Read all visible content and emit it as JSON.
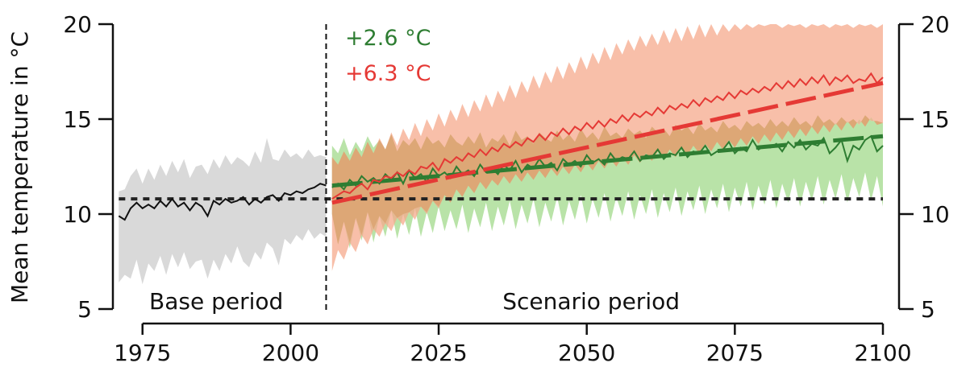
{
  "chart_data": {
    "type": "line",
    "title": "",
    "ylabel": "Mean temperature in °C",
    "xlabel": "",
    "xlim": [
      1970,
      2100
    ],
    "ylim": [
      5,
      20
    ],
    "x_ticks": [
      1975,
      2000,
      2025,
      2050,
      2075,
      2100
    ],
    "y_ticks": [
      5,
      10,
      15,
      20
    ],
    "x_tick_labels": [
      "1975",
      "2000",
      "2025",
      "2050",
      "2075",
      "2100"
    ],
    "y_tick_labels": [
      "5",
      "10",
      "15",
      "20"
    ],
    "period_divider_year": 2006,
    "period_labels": {
      "base": "Base period",
      "scenario": "Scenario period"
    },
    "baseline_mean": 10.8,
    "annotations": [
      {
        "text": "+2.6 °C",
        "color": "#2e7d32"
      },
      {
        "text": "+6.3 °C",
        "color": "#e53935"
      }
    ],
    "colors": {
      "base_band": "#d9d9d9",
      "green": "#2e7d32",
      "green_band": "#b9e3a8",
      "red": "#e53935",
      "red_band": "#f6a98c",
      "baseline": "#222222"
    },
    "base": {
      "x_start": 1971,
      "x_end": 2006,
      "mean": [
        9.9,
        9.7,
        10.3,
        10.6,
        10.3,
        10.5,
        10.3,
        10.7,
        10.4,
        10.8,
        10.4,
        10.6,
        10.2,
        10.6,
        10.4,
        9.9,
        10.7,
        10.5,
        10.8,
        10.6,
        10.7,
        10.9,
        10.5,
        10.8,
        10.6,
        10.9,
        11.0,
        10.7,
        11.1,
        11.0,
        11.2,
        11.1,
        11.3,
        11.4,
        11.6,
        11.5
      ],
      "upper": [
        11.2,
        11.3,
        12.0,
        12.4,
        11.6,
        12.4,
        11.8,
        12.6,
        12.0,
        12.8,
        12.2,
        12.9,
        11.9,
        12.5,
        12.6,
        12.1,
        12.9,
        12.4,
        13.1,
        12.6,
        13.0,
        12.8,
        12.5,
        13.3,
        12.7,
        14.0,
        12.9,
        12.8,
        13.4,
        13.0,
        13.2,
        12.9,
        13.4,
        13.0,
        13.1,
        13.0
      ],
      "lower": [
        6.4,
        6.8,
        6.6,
        7.6,
        6.3,
        7.4,
        7.0,
        7.8,
        6.8,
        7.9,
        7.2,
        8.0,
        7.1,
        7.5,
        7.6,
        6.6,
        7.6,
        7.0,
        7.9,
        7.4,
        8.3,
        7.5,
        7.2,
        8.0,
        7.6,
        8.5,
        8.2,
        7.3,
        8.7,
        8.4,
        8.9,
        8.6,
        9.2,
        8.7,
        9.0,
        8.8
      ]
    },
    "series": [
      {
        "name": "",
        "color": "#2e7d32",
        "x_start": 2007,
        "x_end": 2100,
        "trend": [
          11.5,
          14.1
        ],
        "mean": [
          11.4,
          11.6,
          11.3,
          11.8,
          11.5,
          12.0,
          11.7,
          11.9,
          11.6,
          12.1,
          11.8,
          12.2,
          11.6,
          12.3,
          11.9,
          12.1,
          11.7,
          12.4,
          12.0,
          12.2,
          11.9,
          12.5,
          12.1,
          12.3,
          12.0,
          12.6,
          12.2,
          12.4,
          12.1,
          12.6,
          12.3,
          12.8,
          12.2,
          12.6,
          12.4,
          12.9,
          12.5,
          12.7,
          12.3,
          12.9,
          12.6,
          12.8,
          12.5,
          13.1,
          12.7,
          12.9,
          12.6,
          13.2,
          12.8,
          13.0,
          12.9,
          13.3,
          12.8,
          13.1,
          13.0,
          13.4,
          12.9,
          13.2,
          13.1,
          13.5,
          13.0,
          13.3,
          13.2,
          13.6,
          13.1,
          13.3,
          13.4,
          13.8,
          13.2,
          13.5,
          13.3,
          13.9,
          13.4,
          13.6,
          13.5,
          13.7,
          13.3,
          13.8,
          13.5,
          13.9,
          13.4,
          13.7,
          13.6,
          14.0,
          13.2,
          13.5,
          13.9,
          12.8,
          13.6,
          13.4,
          13.9,
          14.1,
          13.3,
          13.6
        ],
        "upper": [
          13.6,
          13.2,
          14.0,
          13.1,
          13.8,
          13.3,
          14.1,
          13.5,
          13.9,
          13.4,
          14.2,
          13.3,
          13.9,
          13.6,
          14.0,
          13.4,
          14.1,
          13.7,
          13.9,
          13.5,
          14.2,
          13.8,
          13.6,
          14.1,
          13.7,
          14.3,
          13.5,
          14.0,
          13.8,
          14.2,
          13.6,
          14.4,
          13.9,
          14.1,
          13.7,
          14.3,
          14.0,
          13.8,
          14.4,
          13.9,
          14.2,
          13.8,
          14.5,
          14.0,
          14.3,
          13.9,
          14.6,
          14.1,
          14.3,
          14.0,
          14.5,
          14.2,
          14.4,
          14.0,
          14.6,
          14.3,
          14.5,
          14.1,
          14.7,
          14.4,
          14.6,
          14.2,
          14.8,
          14.4,
          14.6,
          14.3,
          14.9,
          14.5,
          14.7,
          14.4,
          14.9,
          14.6,
          14.8,
          14.5,
          15.0,
          14.6,
          14.9,
          14.6,
          15.1,
          14.7,
          14.9,
          14.6,
          15.2,
          14.8,
          15.0,
          14.7,
          15.1,
          14.8,
          15.0,
          14.7,
          15.2,
          14.9,
          14.9,
          14.8
        ],
        "lower": [
          10.0,
          8.4,
          9.6,
          8.2,
          9.8,
          8.6,
          10.1,
          8.5,
          9.9,
          8.8,
          10.2,
          8.7,
          10.0,
          8.9,
          10.3,
          8.8,
          10.1,
          9.0,
          10.4,
          9.1,
          10.2,
          9.2,
          10.5,
          9.0,
          10.3,
          9.3,
          10.6,
          9.1,
          10.4,
          9.4,
          10.7,
          9.2,
          10.5,
          9.5,
          10.8,
          9.3,
          10.6,
          9.6,
          10.9,
          9.4,
          10.7,
          9.7,
          11.0,
          9.5,
          10.8,
          9.8,
          11.1,
          9.6,
          10.9,
          9.9,
          11.2,
          9.7,
          11.0,
          10.0,
          11.3,
          9.8,
          11.1,
          10.1,
          11.4,
          9.9,
          11.2,
          10.2,
          11.5,
          10.0,
          11.3,
          10.3,
          11.6,
          10.1,
          11.4,
          10.4,
          11.7,
          10.2,
          11.5,
          10.5,
          11.8,
          10.3,
          11.6,
          10.6,
          11.9,
          10.4,
          11.7,
          10.7,
          12.0,
          10.5,
          11.8,
          10.8,
          12.1,
          10.6,
          11.9,
          10.9,
          12.2,
          10.7,
          12.0,
          10.4
        ]
      },
      {
        "name": "",
        "color": "#e53935",
        "x_start": 2007,
        "x_end": 2100,
        "trend": [
          10.6,
          16.9
        ],
        "mean": [
          10.8,
          11.0,
          11.2,
          11.1,
          11.4,
          11.6,
          11.3,
          11.8,
          11.7,
          12.0,
          11.9,
          12.2,
          12.0,
          12.3,
          12.1,
          12.5,
          12.4,
          12.7,
          12.3,
          12.9,
          12.7,
          13.0,
          12.8,
          13.2,
          13.0,
          13.4,
          13.1,
          13.5,
          13.3,
          13.7,
          13.5,
          13.8,
          13.6,
          14.0,
          13.8,
          14.2,
          13.9,
          14.3,
          14.1,
          14.5,
          14.2,
          14.6,
          14.4,
          14.8,
          14.5,
          14.9,
          14.6,
          15.0,
          14.8,
          15.2,
          14.9,
          15.3,
          15.1,
          15.4,
          15.2,
          15.6,
          15.3,
          15.7,
          15.5,
          15.8,
          15.6,
          16.0,
          15.7,
          16.1,
          15.9,
          16.2,
          16.0,
          16.4,
          16.1,
          16.5,
          16.3,
          16.6,
          16.4,
          16.7,
          16.5,
          16.9,
          16.6,
          17.0,
          16.7,
          17.1,
          16.8,
          17.2,
          16.9,
          17.3,
          16.8,
          17.2,
          17.0,
          17.3,
          16.9,
          17.1,
          17.0,
          17.4,
          16.9,
          17.2
        ],
        "upper": [
          13.0,
          12.6,
          13.3,
          12.8,
          13.5,
          13.0,
          13.8,
          13.2,
          14.0,
          13.4,
          14.3,
          13.6,
          14.5,
          13.9,
          14.8,
          14.1,
          15.0,
          14.4,
          15.3,
          14.6,
          15.5,
          14.9,
          15.8,
          15.1,
          16.0,
          15.4,
          16.3,
          15.6,
          16.5,
          15.9,
          16.8,
          16.1,
          17.0,
          16.4,
          17.3,
          16.6,
          17.5,
          16.9,
          17.8,
          17.1,
          18.0,
          17.4,
          18.3,
          17.6,
          18.5,
          17.9,
          18.8,
          18.1,
          19.0,
          18.4,
          19.2,
          18.6,
          19.4,
          18.8,
          19.5,
          18.9,
          19.7,
          19.0,
          19.8,
          19.1,
          19.9,
          19.2,
          20.0,
          19.3,
          20.0,
          19.4,
          20.0,
          19.6,
          20.0,
          19.7,
          20.0,
          19.8,
          20.0,
          19.9,
          20.0,
          20.0,
          19.8,
          20.0,
          19.9,
          20.0,
          19.8,
          20.0,
          19.9,
          20.0,
          19.8,
          20.0,
          19.9,
          20.0,
          19.8,
          20.0,
          19.9,
          20.0,
          19.8,
          20.0
        ],
        "lower": [
          7.0,
          8.1,
          7.6,
          8.5,
          8.0,
          8.9,
          8.4,
          9.2,
          8.8,
          9.5,
          9.1,
          9.8,
          9.4,
          10.1,
          9.7,
          10.4,
          10.0,
          10.7,
          10.3,
          11.0,
          10.6,
          11.3,
          10.9,
          11.5,
          11.1,
          11.7,
          11.3,
          11.8,
          11.5,
          12.0,
          11.6,
          12.1,
          11.7,
          12.2,
          11.8,
          12.3,
          11.9,
          12.4,
          12.0,
          12.5,
          12.1,
          12.6,
          12.2,
          12.7,
          12.3,
          12.8,
          12.4,
          12.9,
          12.5,
          13.0,
          12.6,
          13.1,
          12.7,
          13.2,
          12.8,
          13.3,
          12.9,
          13.4,
          13.0,
          13.5,
          13.1,
          13.6,
          13.2,
          13.7,
          13.3,
          13.8,
          13.4,
          13.9,
          13.5,
          14.0,
          13.6,
          14.1,
          13.7,
          14.2,
          13.8,
          14.3,
          13.9,
          14.4,
          14.0,
          14.5,
          14.1,
          14.6,
          14.2,
          14.7,
          14.3,
          14.8,
          14.4,
          14.9,
          14.5,
          15.0,
          14.6,
          15.1,
          14.7,
          14.8
        ]
      }
    ]
  }
}
